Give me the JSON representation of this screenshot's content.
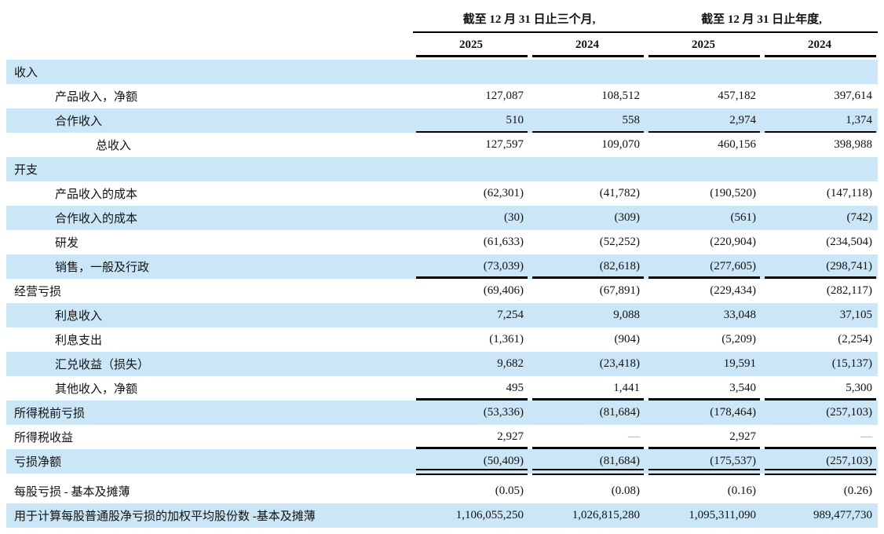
{
  "header": {
    "group_quarter": "截至 12 月 31 日止三个月,",
    "group_year": "截至 12 月 31 日止年度,",
    "years": [
      "2025",
      "2024",
      "2025",
      "2024"
    ]
  },
  "colors": {
    "row_highlight": "#cbe7f7",
    "rule": "#000000",
    "text": "#111111"
  },
  "table": {
    "rows": [
      {
        "label": "收入",
        "indent": 0,
        "shaded": true,
        "values": [
          "",
          "",
          "",
          ""
        ],
        "line_below": "none"
      },
      {
        "label": "产品收入，净额",
        "indent": 1,
        "shaded": false,
        "values": [
          "127,087",
          "108,512",
          "457,182",
          "397,614"
        ],
        "line_below": "none"
      },
      {
        "label": "合作收入",
        "indent": 1,
        "shaded": true,
        "values": [
          "510",
          "558",
          "2,974",
          "1,374"
        ],
        "line_below": "thin"
      },
      {
        "label": "总收入",
        "indent": 2,
        "shaded": false,
        "values": [
          "127,597",
          "109,070",
          "460,156",
          "398,988"
        ],
        "line_below": "none"
      },
      {
        "label": "开支",
        "indent": 0,
        "shaded": true,
        "values": [
          "",
          "",
          "",
          ""
        ],
        "line_below": "none"
      },
      {
        "label": "产品收入的成本",
        "indent": 1,
        "shaded": false,
        "values": [
          "(62,301)",
          "(41,782)",
          "(190,520)",
          "(147,118)"
        ],
        "line_below": "none"
      },
      {
        "label": "合作收入的成本",
        "indent": 1,
        "shaded": true,
        "values": [
          "(30)",
          "(309)",
          "(561)",
          "(742)"
        ],
        "line_below": "none"
      },
      {
        "label": "研发",
        "indent": 1,
        "shaded": false,
        "values": [
          "(61,633)",
          "(52,252)",
          "(220,904)",
          "(234,504)"
        ],
        "line_below": "none"
      },
      {
        "label": "销售，一般及行政",
        "indent": 1,
        "shaded": true,
        "values": [
          "(73,039)",
          "(82,618)",
          "(277,605)",
          "(298,741)"
        ],
        "line_below": "thick"
      },
      {
        "label": "经营亏损",
        "indent": 0,
        "shaded": false,
        "values": [
          "(69,406)",
          "(67,891)",
          "(229,434)",
          "(282,117)"
        ],
        "line_below": "none"
      },
      {
        "label": "利息收入",
        "indent": 1,
        "shaded": true,
        "values": [
          "7,254",
          "9,088",
          "33,048",
          "37,105"
        ],
        "line_below": "none"
      },
      {
        "label": "利息支出",
        "indent": 1,
        "shaded": false,
        "values": [
          "(1,361)",
          "(904)",
          "(5,209)",
          "(2,254)"
        ],
        "line_below": "none"
      },
      {
        "label": "汇兑收益（损失）",
        "indent": 1,
        "shaded": true,
        "values": [
          "9,682",
          "(23,418)",
          "19,591",
          "(15,137)"
        ],
        "line_below": "none"
      },
      {
        "label": "其他收入，净额",
        "indent": 1,
        "shaded": false,
        "values": [
          "495",
          "1,441",
          "3,540",
          "5,300"
        ],
        "line_below": "thick"
      },
      {
        "label": "所得税前亏损",
        "indent": 0,
        "shaded": true,
        "values": [
          "(53,336)",
          "(81,684)",
          "(178,464)",
          "(257,103)"
        ],
        "line_below": "none"
      },
      {
        "label": "所得税收益",
        "indent": 0,
        "shaded": false,
        "values": [
          "2,927",
          "—",
          "2,927",
          "—"
        ],
        "line_below": "thick"
      },
      {
        "label": "亏损净额",
        "indent": 0,
        "shaded": true,
        "values": [
          "(50,409)",
          "(81,684)",
          "(175,537)",
          "(257,103)"
        ],
        "line_below": "double"
      },
      {
        "spacer": true,
        "height": 7
      },
      {
        "label": "每股亏损 - 基本及摊薄",
        "indent": 0,
        "shaded": false,
        "values": [
          "(0.05)",
          "(0.08)",
          "(0.16)",
          "(0.26)"
        ],
        "line_below": "none"
      },
      {
        "label": "用于计算每股普通股净亏损的加权平均股份数 -基本及摊薄",
        "indent": 0,
        "shaded": true,
        "values": [
          "1,106,055,250",
          "1,026,815,280",
          "1,095,311,090",
          "989,477,730"
        ],
        "line_below": "none"
      }
    ]
  }
}
